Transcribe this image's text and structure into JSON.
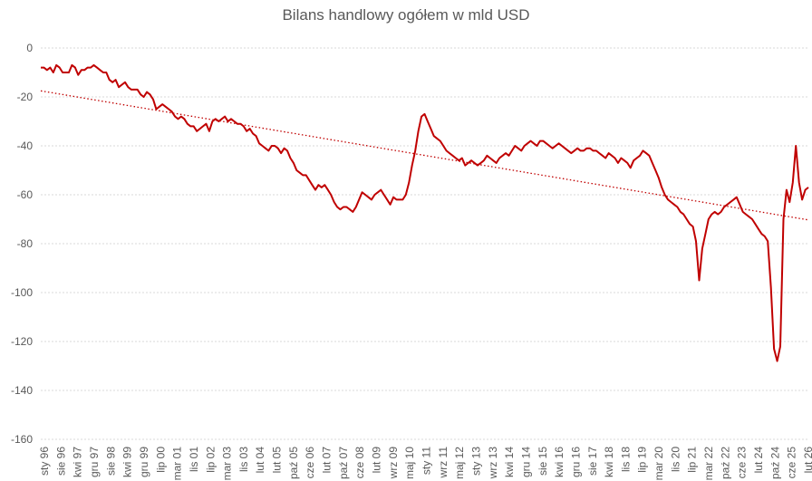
{
  "chart_data": {
    "type": "line",
    "title": "Bilans handlowy ogółem w mld USD",
    "xlabel": "",
    "ylabel": "",
    "ylim": [
      -160,
      0
    ],
    "yticks": [
      0,
      -20,
      -40,
      -60,
      -80,
      -100,
      -120,
      -140,
      -160
    ],
    "grid": true,
    "x_tick_labels": [
      "sty 96",
      "sie 96",
      "kwi 97",
      "gru 97",
      "sie 98",
      "kwi 99",
      "gru 99",
      "lip 00",
      "mar 01",
      "lis 01",
      "lip 02",
      "mar 03",
      "lis 03",
      "lut 04",
      "lut 05",
      "paź 05",
      "cze 06",
      "lut 07",
      "paź 07",
      "cze 08",
      "lut 09",
      "wrz 09",
      "maj 10",
      "sty 11",
      "wrz 11",
      "maj 12",
      "sty 13",
      "wrz 13",
      "kwi 14",
      "gru 14",
      "sie 15",
      "kwi 16",
      "gru 16",
      "sie 17",
      "kwi 18",
      "lis 18",
      "lip 19",
      "mar 20",
      "lis 20",
      "lip 21",
      "mar 22",
      "paź 22",
      "cze 23",
      "lut 24",
      "paź 24",
      "cze 25",
      "lut 26"
    ],
    "x_start": "1996-01",
    "series": [
      {
        "color": "#c00000",
        "style": "solid",
        "values": [
          [
            0,
            -8
          ],
          [
            2,
            -8
          ],
          [
            4,
            -9
          ],
          [
            6,
            -8
          ],
          [
            8,
            -10
          ],
          [
            10,
            -7
          ],
          [
            12,
            -8
          ],
          [
            14,
            -10
          ],
          [
            16,
            -10
          ],
          [
            18,
            -10
          ],
          [
            20,
            -7
          ],
          [
            22,
            -8
          ],
          [
            24,
            -11
          ],
          [
            26,
            -9
          ],
          [
            28,
            -9
          ],
          [
            30,
            -8
          ],
          [
            32,
            -8
          ],
          [
            34,
            -7
          ],
          [
            36,
            -8
          ],
          [
            38,
            -9
          ],
          [
            40,
            -10
          ],
          [
            42,
            -10
          ],
          [
            44,
            -13
          ],
          [
            46,
            -14
          ],
          [
            48,
            -13
          ],
          [
            50,
            -16
          ],
          [
            52,
            -15
          ],
          [
            54,
            -14
          ],
          [
            56,
            -16
          ],
          [
            58,
            -17
          ],
          [
            60,
            -17
          ],
          [
            62,
            -17
          ],
          [
            64,
            -19
          ],
          [
            66,
            -20
          ],
          [
            68,
            -18
          ],
          [
            70,
            -19
          ],
          [
            72,
            -21
          ],
          [
            74,
            -25
          ],
          [
            76,
            -24
          ],
          [
            78,
            -23
          ],
          [
            80,
            -24
          ],
          [
            82,
            -25
          ],
          [
            84,
            -26
          ],
          [
            86,
            -28
          ],
          [
            88,
            -29
          ],
          [
            90,
            -28
          ],
          [
            92,
            -29
          ],
          [
            94,
            -31
          ],
          [
            96,
            -32
          ],
          [
            98,
            -32
          ],
          [
            100,
            -34
          ],
          [
            102,
            -33
          ],
          [
            104,
            -32
          ],
          [
            106,
            -31
          ],
          [
            108,
            -34
          ],
          [
            110,
            -30
          ],
          [
            112,
            -29
          ],
          [
            114,
            -30
          ],
          [
            116,
            -29
          ],
          [
            118,
            -28
          ],
          [
            120,
            -30
          ],
          [
            122,
            -29
          ],
          [
            124,
            -30
          ],
          [
            126,
            -31
          ],
          [
            128,
            -31
          ],
          [
            130,
            -32
          ],
          [
            132,
            -34
          ],
          [
            134,
            -33
          ],
          [
            136,
            -35
          ],
          [
            138,
            -36
          ],
          [
            140,
            -39
          ],
          [
            142,
            -40
          ],
          [
            144,
            -41
          ],
          [
            146,
            -42
          ],
          [
            148,
            -40
          ],
          [
            150,
            -40
          ],
          [
            152,
            -41
          ],
          [
            154,
            -43
          ],
          [
            156,
            -41
          ],
          [
            158,
            -42
          ],
          [
            160,
            -45
          ],
          [
            162,
            -47
          ],
          [
            164,
            -50
          ],
          [
            166,
            -51
          ],
          [
            168,
            -52
          ],
          [
            170,
            -52
          ],
          [
            172,
            -54
          ],
          [
            174,
            -56
          ],
          [
            176,
            -58
          ],
          [
            178,
            -56
          ],
          [
            180,
            -57
          ],
          [
            182,
            -56
          ],
          [
            184,
            -58
          ],
          [
            186,
            -60
          ],
          [
            188,
            -63
          ],
          [
            190,
            -65
          ],
          [
            192,
            -66
          ],
          [
            194,
            -65
          ],
          [
            196,
            -65
          ],
          [
            198,
            -66
          ],
          [
            200,
            -67
          ],
          [
            202,
            -65
          ],
          [
            204,
            -62
          ],
          [
            206,
            -59
          ],
          [
            208,
            -60
          ],
          [
            210,
            -61
          ],
          [
            212,
            -62
          ],
          [
            214,
            -60
          ],
          [
            216,
            -59
          ],
          [
            218,
            -58
          ],
          [
            220,
            -60
          ],
          [
            222,
            -62
          ],
          [
            224,
            -64
          ],
          [
            226,
            -61
          ],
          [
            228,
            -62
          ],
          [
            230,
            -62
          ],
          [
            232,
            -62
          ],
          [
            234,
            -60
          ],
          [
            236,
            -55
          ],
          [
            238,
            -48
          ],
          [
            240,
            -42
          ],
          [
            242,
            -34
          ],
          [
            244,
            -28
          ],
          [
            246,
            -27
          ],
          [
            248,
            -30
          ],
          [
            250,
            -33
          ],
          [
            252,
            -36
          ],
          [
            254,
            -37
          ],
          [
            256,
            -38
          ],
          [
            258,
            -40
          ],
          [
            260,
            -42
          ],
          [
            262,
            -43
          ],
          [
            264,
            -44
          ],
          [
            266,
            -45
          ],
          [
            268,
            -46
          ],
          [
            270,
            -45
          ],
          [
            272,
            -48
          ],
          [
            274,
            -47
          ],
          [
            276,
            -46
          ],
          [
            278,
            -47
          ],
          [
            280,
            -48
          ],
          [
            282,
            -47
          ],
          [
            284,
            -46
          ],
          [
            286,
            -44
          ],
          [
            288,
            -45
          ],
          [
            290,
            -46
          ],
          [
            292,
            -47
          ],
          [
            294,
            -45
          ],
          [
            296,
            -44
          ],
          [
            298,
            -43
          ],
          [
            300,
            -44
          ],
          [
            302,
            -42
          ],
          [
            304,
            -40
          ],
          [
            306,
            -41
          ],
          [
            308,
            -42
          ],
          [
            310,
            -40
          ],
          [
            312,
            -39
          ],
          [
            314,
            -38
          ],
          [
            316,
            -39
          ],
          [
            318,
            -40
          ],
          [
            320,
            -38
          ],
          [
            322,
            -38
          ],
          [
            324,
            -39
          ],
          [
            326,
            -40
          ],
          [
            328,
            -41
          ],
          [
            330,
            -40
          ],
          [
            332,
            -39
          ],
          [
            334,
            -40
          ],
          [
            336,
            -41
          ],
          [
            338,
            -42
          ],
          [
            340,
            -43
          ],
          [
            342,
            -42
          ],
          [
            344,
            -41
          ],
          [
            346,
            -42
          ],
          [
            348,
            -42
          ],
          [
            350,
            -41
          ],
          [
            352,
            -41
          ],
          [
            354,
            -42
          ],
          [
            356,
            -42
          ],
          [
            358,
            -43
          ],
          [
            360,
            -44
          ],
          [
            362,
            -45
          ],
          [
            364,
            -43
          ],
          [
            366,
            -44
          ],
          [
            368,
            -45
          ],
          [
            370,
            -47
          ],
          [
            372,
            -45
          ],
          [
            374,
            -46
          ],
          [
            376,
            -47
          ],
          [
            378,
            -49
          ],
          [
            380,
            -46
          ],
          [
            382,
            -45
          ],
          [
            384,
            -44
          ],
          [
            386,
            -42
          ],
          [
            388,
            -43
          ],
          [
            390,
            -44
          ],
          [
            392,
            -47
          ],
          [
            394,
            -50
          ],
          [
            396,
            -53
          ],
          [
            398,
            -57
          ],
          [
            400,
            -60
          ],
          [
            402,
            -62
          ],
          [
            404,
            -63
          ],
          [
            406,
            -64
          ],
          [
            408,
            -65
          ],
          [
            410,
            -67
          ],
          [
            412,
            -68
          ],
          [
            414,
            -70
          ],
          [
            416,
            -72
          ],
          [
            418,
            -73
          ],
          [
            420,
            -79
          ],
          [
            422,
            -95
          ],
          [
            424,
            -82
          ],
          [
            426,
            -76
          ],
          [
            428,
            -70
          ],
          [
            430,
            -68
          ],
          [
            432,
            -67
          ],
          [
            434,
            -68
          ],
          [
            436,
            -67
          ],
          [
            438,
            -65
          ],
          [
            440,
            -64
          ],
          [
            442,
            -63
          ],
          [
            444,
            -62
          ],
          [
            446,
            -61
          ],
          [
            448,
            -64
          ],
          [
            450,
            -67
          ],
          [
            452,
            -68
          ],
          [
            454,
            -69
          ],
          [
            456,
            -70
          ],
          [
            458,
            -72
          ],
          [
            460,
            -74
          ],
          [
            462,
            -76
          ],
          [
            464,
            -77
          ],
          [
            466,
            -79
          ],
          [
            468,
            -98
          ],
          [
            470,
            -123
          ],
          [
            472,
            -128
          ],
          [
            474,
            -122
          ],
          [
            476,
            -70
          ],
          [
            478,
            -58
          ],
          [
            480,
            -63
          ],
          [
            482,
            -55
          ],
          [
            484,
            -40
          ],
          [
            486,
            -55
          ],
          [
            488,
            -62
          ],
          [
            490,
            -58
          ],
          [
            492,
            -57
          ]
        ]
      },
      {
        "color": "#c00000",
        "style": "dotted",
        "values": [
          [
            0,
            -17.5
          ],
          [
            492,
            -70.3
          ]
        ]
      }
    ],
    "legend": "none"
  }
}
